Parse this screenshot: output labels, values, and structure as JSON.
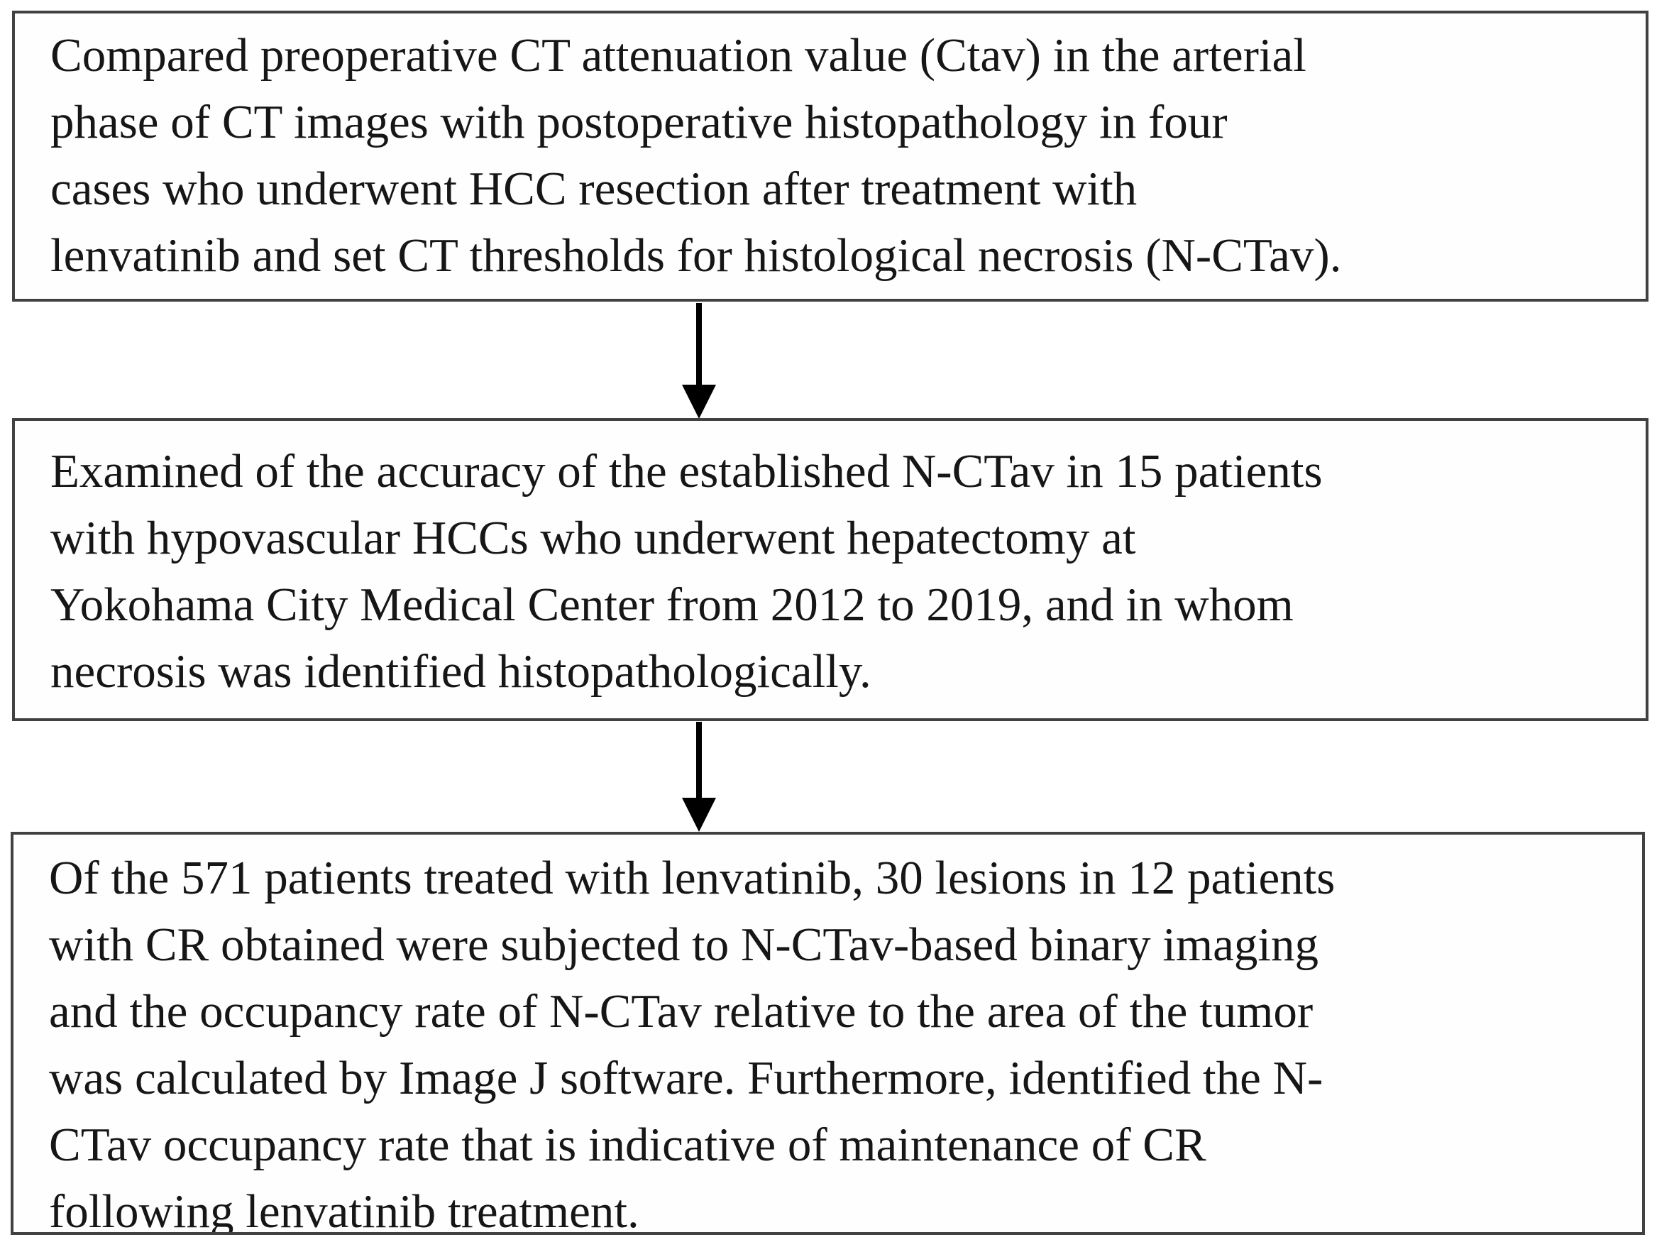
{
  "figure": {
    "type": "flowchart",
    "direction": "top-down",
    "description": "Three-step study workflow diagram with boxes connected by downward arrows"
  },
  "boxes": [
    {
      "id": "step-1",
      "text": "Compared preoperative CT attenuation value (Ctav) in the arterial\nphase of CT images with postoperative histopathology in four\ncases who underwent HCC resection after treatment with\nlenvatinib and set CT thresholds for histological necrosis (N-CTav)."
    },
    {
      "id": "step-2",
      "text": "Examined of the accuracy of the established N-CTav in 15 patients\nwith hypovascular HCCs who underwent hepatectomy at\nYokohama City Medical Center from 2012 to 2019, and in whom\nnecrosis was identified histopathologically."
    },
    {
      "id": "step-3",
      "text": "Of the 571 patients treated with lenvatinib, 30 lesions in 12 patients\nwith CR obtained were subjected to N-CTav-based binary imaging\nand the occupancy rate of N-CTav relative to the area of the tumor\nwas calculated by Image J software. Furthermore, identified the N-\nCTav occupancy rate that is indicative of maintenance of CR\nfollowing lenvatinib treatment."
    }
  ],
  "connectors": [
    {
      "from": "step-1",
      "to": "step-2",
      "shape": "vertical-arrow-down"
    },
    {
      "from": "step-2",
      "to": "step-3",
      "shape": "vertical-arrow-down"
    }
  ],
  "colors": {
    "background": "#ffffff",
    "box_background": "#fefefe",
    "border": "#414141",
    "text": "#161616",
    "arrow": "#000000"
  }
}
